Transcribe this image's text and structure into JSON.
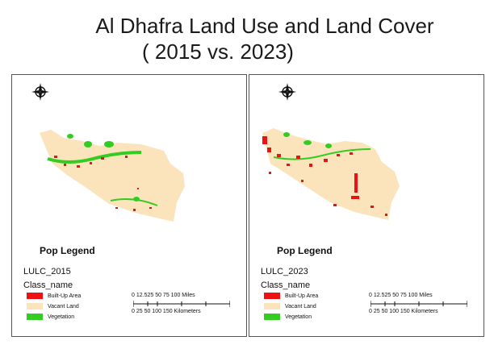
{
  "title": {
    "line1": "Al Dhafra Land Use and Land Cover",
    "line2": "( 2015  vs.  2023)"
  },
  "colors": {
    "built_up": "#ee1111",
    "vacant": "#fbe4bc",
    "vegetation": "#33cc22"
  },
  "panels": [
    {
      "id": "2015",
      "pop_legend": "Pop Legend",
      "layer_name": "LULC_2015",
      "field_name": "Class_name",
      "legend": [
        {
          "label": "Built-Up Area",
          "color": "#ee1111"
        },
        {
          "label": "Vacant Land",
          "color": "#fbe4bc"
        },
        {
          "label": "Vegetation",
          "color": "#33cc22"
        }
      ],
      "scale_miles": "0 12.525     50     75     100 Miles",
      "scale_km": "0    25  50         100          150 Kilometers"
    },
    {
      "id": "2023",
      "pop_legend": "Pop Legend",
      "layer_name": "LULC_2023",
      "field_name": "Class_name",
      "legend": [
        {
          "label": "Built-Up Area",
          "color": "#ee1111"
        },
        {
          "label": "Vacant Land",
          "color": "#fbe4bc"
        },
        {
          "label": "Vegetation",
          "color": "#33cc22"
        }
      ],
      "scale_miles": "0 12.525     50     75     100 Miles",
      "scale_km": "0    25  50         100          150 Kilometers"
    }
  ]
}
